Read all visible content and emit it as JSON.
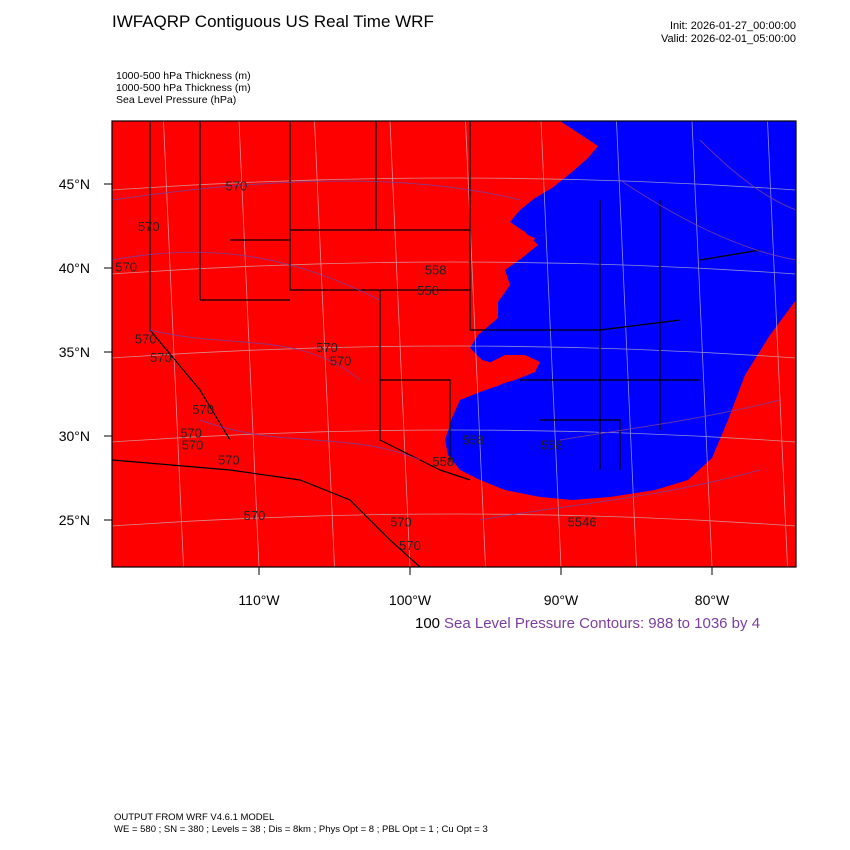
{
  "header": {
    "title": "IWFAQRP Contiguous US Real Time WRF",
    "init": "Init: 2026-01-27_00:00:00",
    "valid": "Valid: 2026-02-01_05:00:00"
  },
  "fields": [
    "1000-500 hPa Thickness   (m)",
    "1000-500 hPa Thickness   (m)",
    "Sea Level Pressure   (hPa)"
  ],
  "axes": {
    "lat_labels": [
      "45°N",
      "40°N",
      "35°N",
      "30°N",
      "25°N"
    ],
    "lon_labels": [
      "110°W",
      "100°W",
      "90°W",
      "80°W"
    ]
  },
  "contour_labels": [
    {
      "text": "570",
      "lon": -111.5,
      "lat": 44.6
    },
    {
      "text": "570",
      "lon": -117.3,
      "lat": 42.2
    },
    {
      "text": "570",
      "lon": -118.8,
      "lat": 39.8
    },
    {
      "text": "570",
      "lon": -117.5,
      "lat": 35.5
    },
    {
      "text": "570",
      "lon": -116.5,
      "lat": 34.4
    },
    {
      "text": "570",
      "lon": -105.5,
      "lat": 35.0
    },
    {
      "text": "570",
      "lon": -104.6,
      "lat": 34.2
    },
    {
      "text": "570",
      "lon": -113.7,
      "lat": 31.3
    },
    {
      "text": "570",
      "lon": -114.5,
      "lat": 29.9
    },
    {
      "text": "570",
      "lon": -114.4,
      "lat": 29.2
    },
    {
      "text": "570",
      "lon": -112.0,
      "lat": 28.3
    },
    {
      "text": "570",
      "lon": -110.3,
      "lat": 25.0
    },
    {
      "text": "570",
      "lon": -100.6,
      "lat": 24.6
    },
    {
      "text": "570",
      "lon": -100.0,
      "lat": 23.2
    },
    {
      "text": "558",
      "lon": -98.3,
      "lat": 39.6
    },
    {
      "text": "558",
      "lon": -98.8,
      "lat": 38.4
    },
    {
      "text": "558",
      "lon": -95.8,
      "lat": 29.5
    },
    {
      "text": "558",
      "lon": -97.8,
      "lat": 28.2
    },
    {
      "text": "558",
      "lon": -90.6,
      "lat": 29.2
    },
    {
      "text": "5546",
      "lon": -88.6,
      "lat": 24.6
    }
  ],
  "colorbar": {
    "left_label": "100",
    "right_label": "Sea Level Pressure Contours: 988 to 1036 by 4"
  },
  "colors": {
    "warm_fill": "#ff0000",
    "cold_fill": "#0000ff",
    "pressure_contour": "#7a3e9d",
    "borders": "#000000"
  },
  "footer": {
    "line1": "OUTPUT FROM WRF V4.6.1 MODEL",
    "line2": "WE = 580 ; SN = 380 ; Levels = 38 ; Dis = 8km ; Phys Opt = 8 ; PBL Opt = 1 ; Cu Opt = 3"
  }
}
